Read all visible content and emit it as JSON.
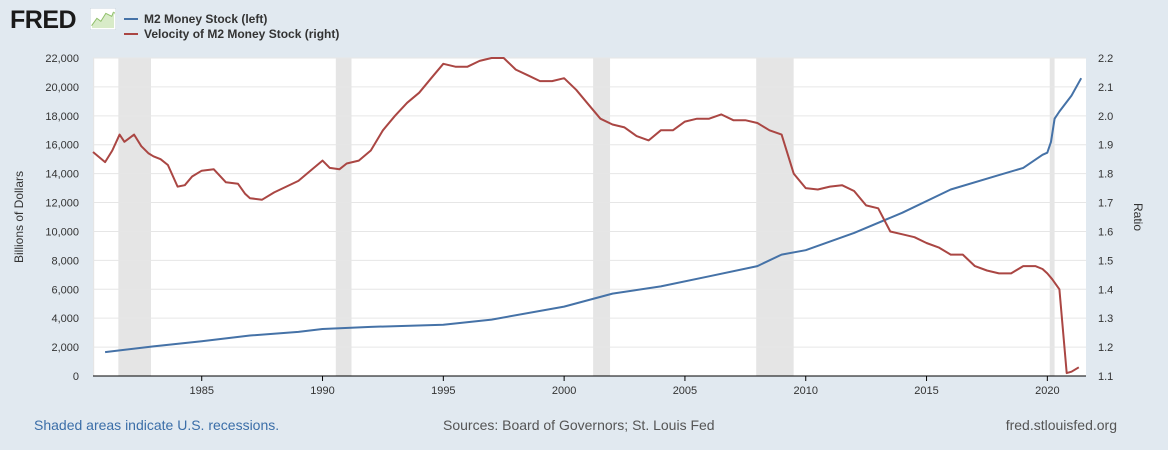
{
  "logo": {
    "text": "FRED"
  },
  "chart_data": {
    "type": "line",
    "x_range": [
      1980.5,
      2021.6
    ],
    "x_ticks": [
      1985,
      1990,
      1995,
      2000,
      2005,
      2010,
      2015,
      2020
    ],
    "x_tick_labels": [
      "1985",
      "1990",
      "1995",
      "2000",
      "2005",
      "2010",
      "2015",
      "2020"
    ],
    "left_axis": {
      "title": "Billions of Dollars",
      "range": [
        0,
        22000
      ],
      "ticks": [
        0,
        2000,
        4000,
        6000,
        8000,
        10000,
        12000,
        14000,
        16000,
        18000,
        20000,
        22000
      ],
      "tick_labels": [
        "0",
        "2,000",
        "4,000",
        "6,000",
        "8,000",
        "10,000",
        "12,000",
        "14,000",
        "16,000",
        "18,000",
        "20,000",
        "22,000"
      ]
    },
    "right_axis": {
      "title": "Ratio",
      "range": [
        1.1,
        2.2
      ],
      "ticks": [
        1.1,
        1.2,
        1.3,
        1.4,
        1.5,
        1.6,
        1.7,
        1.8,
        1.9,
        2.0,
        2.1,
        2.2
      ],
      "tick_labels": [
        "1.1",
        "1.2",
        "1.3",
        "1.4",
        "1.5",
        "1.6",
        "1.7",
        "1.8",
        "1.9",
        "2.0",
        "2.1",
        "2.2"
      ]
    },
    "grid": true,
    "recessions": [
      [
        1980.5,
        1980.55
      ],
      [
        1981.55,
        1982.9
      ],
      [
        1990.55,
        1991.2
      ],
      [
        2001.2,
        2001.9
      ],
      [
        2007.95,
        2009.5
      ],
      [
        2020.1,
        2020.3
      ]
    ],
    "series": [
      {
        "name": "M2 Money Stock (left)",
        "axis": "left",
        "color": "#4572a7",
        "x": [
          1981,
          1983,
          1985,
          1987,
          1989,
          1990,
          1992,
          1995,
          1997,
          2000,
          2002,
          2004,
          2006,
          2008,
          2009,
          2010,
          2012,
          2014,
          2016,
          2018,
          2019,
          2019.8,
          2020.0,
          2020.15,
          2020.3,
          2020.5,
          2021,
          2021.4
        ],
        "values": [
          1650,
          2050,
          2400,
          2800,
          3050,
          3250,
          3400,
          3550,
          3900,
          4800,
          5700,
          6200,
          6900,
          7600,
          8400,
          8700,
          9900,
          11300,
          12900,
          13900,
          14400,
          15300,
          15450,
          16200,
          17800,
          18300,
          19400,
          20600
        ]
      },
      {
        "name": "Velocity of M2 Money Stock (right)",
        "axis": "right",
        "color": "#aa4643",
        "x": [
          1980.5,
          1981.0,
          1981.3,
          1981.6,
          1981.8,
          1982.2,
          1982.5,
          1982.8,
          1983.0,
          1983.3,
          1983.6,
          1984.0,
          1984.3,
          1984.6,
          1985.0,
          1985.5,
          1986.0,
          1986.5,
          1986.8,
          1987.0,
          1987.5,
          1988.0,
          1988.5,
          1989.0,
          1989.5,
          1990.0,
          1990.3,
          1990.7,
          1991.0,
          1991.5,
          1992.0,
          1992.5,
          1993.0,
          1993.5,
          1994.0,
          1994.5,
          1995.0,
          1995.5,
          1996.0,
          1996.5,
          1997.0,
          1997.5,
          1998.0,
          1998.5,
          1999.0,
          1999.5,
          2000.0,
          2000.5,
          2001.0,
          2001.5,
          2002.0,
          2002.5,
          2003.0,
          2003.5,
          2004.0,
          2004.5,
          2005.0,
          2005.5,
          2006.0,
          2006.5,
          2007.0,
          2007.5,
          2008.0,
          2008.5,
          2009.0,
          2009.5,
          2010.0,
          2010.5,
          2011.0,
          2011.5,
          2012.0,
          2012.5,
          2013.0,
          2013.5,
          2014.0,
          2014.5,
          2015.0,
          2015.5,
          2016.0,
          2016.5,
          2017.0,
          2017.5,
          2018.0,
          2018.5,
          2019.0,
          2019.5,
          2019.8,
          2020.0,
          2020.2,
          2020.5,
          2020.8,
          2021.0,
          2021.3
        ],
        "values": [
          1.875,
          1.84,
          1.88,
          1.935,
          1.91,
          1.935,
          1.895,
          1.87,
          1.86,
          1.85,
          1.83,
          1.755,
          1.76,
          1.79,
          1.81,
          1.815,
          1.77,
          1.765,
          1.73,
          1.715,
          1.71,
          1.735,
          1.755,
          1.775,
          1.81,
          1.845,
          1.82,
          1.815,
          1.835,
          1.845,
          1.88,
          1.95,
          2.0,
          2.045,
          2.08,
          2.13,
          2.18,
          2.17,
          2.17,
          2.19,
          2.2,
          2.2,
          2.16,
          2.14,
          2.12,
          2.12,
          2.13,
          2.09,
          2.04,
          1.99,
          1.97,
          1.96,
          1.93,
          1.915,
          1.95,
          1.95,
          1.98,
          1.99,
          1.99,
          2.005,
          1.985,
          1.985,
          1.975,
          1.95,
          1.935,
          1.8,
          1.75,
          1.745,
          1.755,
          1.76,
          1.74,
          1.69,
          1.68,
          1.6,
          1.59,
          1.58,
          1.56,
          1.545,
          1.52,
          1.52,
          1.48,
          1.465,
          1.455,
          1.455,
          1.48,
          1.48,
          1.47,
          1.455,
          1.435,
          1.4,
          1.11,
          1.115,
          1.13
        ]
      }
    ]
  },
  "footer": {
    "recession_note": "Shaded areas indicate U.S. recessions.",
    "sources": "Sources: Board of Governors; St. Louis Fed",
    "site": "fred.stlouisfed.org"
  }
}
